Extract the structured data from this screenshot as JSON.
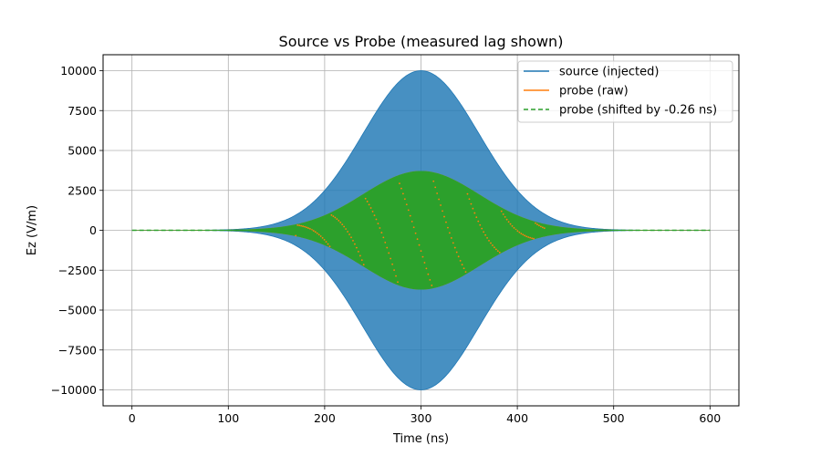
{
  "chart_data": {
    "type": "line",
    "title": "Source vs Probe (measured lag shown)",
    "xlabel": "Time (ns)",
    "ylabel": "Ez (V/m)",
    "xlim": [
      -30,
      630
    ],
    "ylim": [
      -11000,
      11000
    ],
    "x_ticks": [
      0,
      100,
      200,
      300,
      400,
      500,
      600
    ],
    "y_ticks": [
      -10000,
      -7500,
      -5000,
      -2500,
      0,
      2500,
      5000,
      7500,
      10000
    ],
    "x_tick_labels": [
      "0",
      "100",
      "200",
      "300",
      "400",
      "500",
      "600"
    ],
    "y_tick_labels": [
      "−10000",
      "−7500",
      "−5000",
      "−2500",
      "0",
      "2500",
      "5000",
      "7500",
      "10000"
    ],
    "grid": true,
    "legend_position": "top-right",
    "x_range": [
      0,
      600
    ],
    "series": [
      {
        "name": "source (injected)",
        "style": "solid",
        "color": "#1f77b4",
        "envelope": {
          "center": 300,
          "sigma": 60,
          "peak": 10000
        }
      },
      {
        "name": "probe (raw)",
        "style": "solid",
        "color": "#ff7f0e",
        "envelope": {
          "center": 300,
          "sigma": 60,
          "peak": 3700
        }
      },
      {
        "name": "probe (shifted by -0.26 ns)",
        "style": "dashed",
        "color": "#2ca02c",
        "envelope": {
          "center": 300,
          "sigma": 60,
          "peak": 3700
        }
      }
    ]
  }
}
